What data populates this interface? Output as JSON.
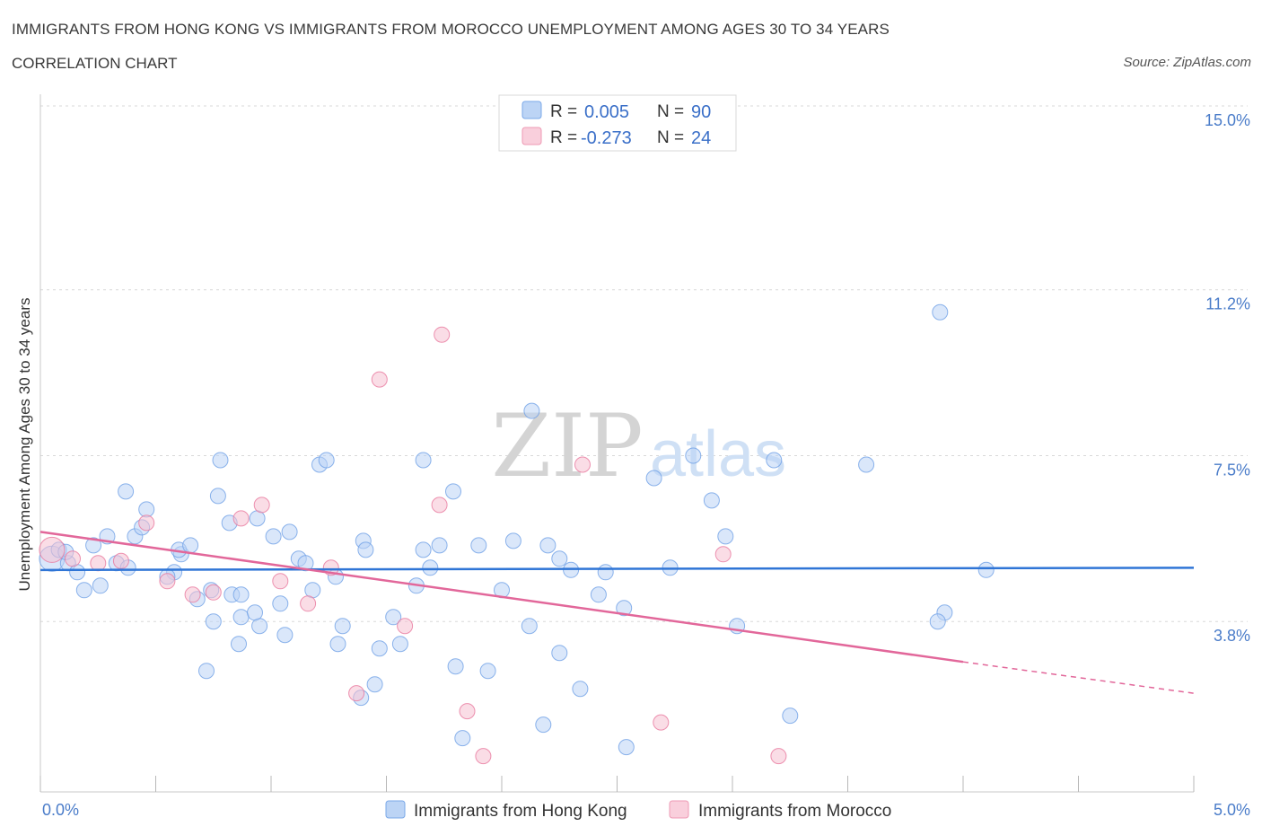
{
  "header": {
    "title": "IMMIGRANTS FROM HONG KONG VS IMMIGRANTS FROM MOROCCO UNEMPLOYMENT AMONG AGES 30 TO 34 YEARS",
    "subtitle": "CORRELATION CHART",
    "source": "Source: ZipAtlas.com"
  },
  "watermark": {
    "zip": "ZIP",
    "atlas": "atlas"
  },
  "stats_legend": {
    "rows": [
      {
        "r_label": "R =",
        "r_value": "0.005",
        "n_label": "N =",
        "n_value": "90",
        "color": "#aecbf2"
      },
      {
        "r_label": "R =",
        "r_value": "-0.273",
        "n_label": "N =",
        "n_value": "24",
        "color": "#f6bfd0"
      }
    ]
  },
  "chart_data": {
    "type": "scatter",
    "title": "IMMIGRANTS FROM HONG KONG VS IMMIGRANTS FROM MOROCCO UNEMPLOYMENT AMONG AGES 30 TO 34 YEARS",
    "xlabel": "",
    "ylabel": "Unemployment Among Ages 30 to 34 years",
    "xlim": [
      0,
      5
    ],
    "ylim": [
      0,
      15.3
    ],
    "x_tick_labels": [
      "0.0%",
      "5.0%"
    ],
    "y_ticks": [
      3.8,
      7.5,
      11.2,
      15.0
    ],
    "y_tick_labels": [
      "3.8%",
      "7.5%",
      "11.2%",
      "15.0%"
    ],
    "grid": true,
    "legend_position": "bottom-center",
    "series": [
      {
        "name": "Immigrants from Hong Kong",
        "color": "#6fa0e6",
        "fill": "#bcd4f5",
        "trend": {
          "x": [
            0.0,
            5.0
          ],
          "y": [
            4.95,
            5.0
          ]
        },
        "points": [
          [
            0.05,
            5.2
          ],
          [
            0.08,
            5.4
          ],
          [
            0.12,
            5.1
          ],
          [
            0.16,
            4.9
          ],
          [
            0.19,
            4.5
          ],
          [
            0.23,
            5.5
          ],
          [
            0.26,
            4.6
          ],
          [
            0.29,
            5.7
          ],
          [
            0.33,
            5.1
          ],
          [
            0.37,
            6.7
          ],
          [
            0.38,
            5.0
          ],
          [
            0.41,
            5.7
          ],
          [
            0.44,
            5.9
          ],
          [
            0.46,
            6.3
          ],
          [
            0.58,
            4.9
          ],
          [
            0.55,
            4.8
          ],
          [
            0.61,
            5.3
          ],
          [
            0.6,
            5.4
          ],
          [
            0.65,
            5.5
          ],
          [
            0.74,
            4.5
          ],
          [
            0.68,
            4.3
          ],
          [
            0.75,
            3.8
          ],
          [
            0.77,
            6.6
          ],
          [
            0.82,
            6.0
          ],
          [
            0.83,
            4.4
          ],
          [
            0.86,
            3.3
          ],
          [
            0.87,
            4.4
          ],
          [
            0.94,
            6.1
          ],
          [
            0.87,
            3.9
          ],
          [
            0.78,
            7.4
          ],
          [
            0.72,
            2.7
          ],
          [
            0.95,
            3.7
          ],
          [
            0.93,
            4.0
          ],
          [
            1.01,
            5.7
          ],
          [
            1.04,
            4.2
          ],
          [
            1.06,
            3.5
          ],
          [
            1.08,
            5.8
          ],
          [
            1.12,
            5.2
          ],
          [
            1.15,
            5.1
          ],
          [
            1.18,
            4.5
          ],
          [
            1.21,
            7.3
          ],
          [
            1.24,
            7.4
          ],
          [
            1.29,
            3.3
          ],
          [
            1.28,
            4.8
          ],
          [
            1.31,
            3.7
          ],
          [
            1.39,
            2.1
          ],
          [
            1.4,
            5.6
          ],
          [
            1.41,
            5.4
          ],
          [
            1.45,
            2.4
          ],
          [
            1.47,
            3.2
          ],
          [
            1.53,
            3.9
          ],
          [
            1.56,
            3.3
          ],
          [
            1.63,
            4.6
          ],
          [
            1.66,
            5.4
          ],
          [
            1.66,
            7.4
          ],
          [
            1.69,
            5.0
          ],
          [
            1.73,
            5.5
          ],
          [
            1.79,
            6.7
          ],
          [
            1.8,
            2.8
          ],
          [
            1.83,
            1.2
          ],
          [
            1.9,
            5.5
          ],
          [
            1.94,
            2.7
          ],
          [
            2.0,
            4.5
          ],
          [
            2.05,
            5.6
          ],
          [
            2.12,
            3.7
          ],
          [
            2.13,
            8.5
          ],
          [
            2.18,
            1.5
          ],
          [
            2.2,
            5.5
          ],
          [
            2.25,
            5.2
          ],
          [
            2.25,
            3.1
          ],
          [
            2.3,
            4.95
          ],
          [
            2.34,
            2.3
          ],
          [
            2.42,
            4.4
          ],
          [
            2.45,
            4.9
          ],
          [
            2.53,
            4.1
          ],
          [
            2.54,
            1.0
          ],
          [
            2.66,
            7.0
          ],
          [
            2.73,
            5.0
          ],
          [
            2.83,
            7.5
          ],
          [
            2.91,
            6.5
          ],
          [
            2.97,
            5.7
          ],
          [
            3.02,
            3.7
          ],
          [
            3.18,
            7.4
          ],
          [
            3.25,
            1.7
          ],
          [
            3.58,
            7.3
          ],
          [
            4.1,
            4.95
          ],
          [
            3.9,
            10.7
          ],
          [
            3.92,
            4.0
          ],
          [
            3.89,
            3.8
          ],
          [
            0.11,
            5.35
          ]
        ]
      },
      {
        "name": "Immigrants from Morocco",
        "color": "#e9789d",
        "fill": "#f6c1d1",
        "trend": {
          "x": [
            0.0,
            4.0
          ],
          "y": [
            5.8,
            2.9
          ]
        },
        "trend_dashed": {
          "x": [
            4.0,
            5.0
          ],
          "y": [
            2.9,
            2.2
          ]
        },
        "points": [
          [
            0.05,
            5.4
          ],
          [
            0.14,
            5.2
          ],
          [
            0.25,
            5.1
          ],
          [
            0.35,
            5.15
          ],
          [
            0.46,
            6.0
          ],
          [
            0.55,
            4.7
          ],
          [
            0.66,
            4.4
          ],
          [
            0.75,
            4.45
          ],
          [
            0.87,
            6.1
          ],
          [
            0.96,
            6.4
          ],
          [
            1.04,
            4.7
          ],
          [
            1.16,
            4.2
          ],
          [
            1.26,
            5.0
          ],
          [
            1.37,
            2.2
          ],
          [
            1.47,
            9.2
          ],
          [
            1.58,
            3.7
          ],
          [
            1.73,
            6.4
          ],
          [
            1.74,
            10.2
          ],
          [
            1.85,
            1.8
          ],
          [
            1.92,
            0.8
          ],
          [
            2.35,
            7.3
          ],
          [
            2.69,
            1.55
          ],
          [
            2.96,
            5.3
          ],
          [
            3.2,
            0.8
          ]
        ]
      }
    ]
  }
}
